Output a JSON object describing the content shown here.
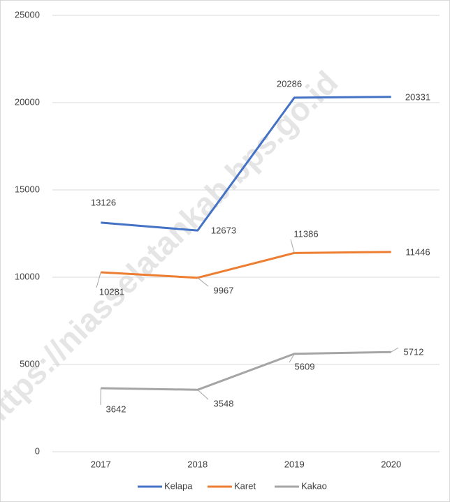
{
  "chart_data": {
    "type": "line",
    "categories": [
      "2017",
      "2018",
      "2019",
      "2020"
    ],
    "series": [
      {
        "name": "Kelapa",
        "color": "#4472c4",
        "values": [
          13126,
          12673,
          20286,
          20331
        ]
      },
      {
        "name": "Karet",
        "color": "#ed7d31",
        "values": [
          10281,
          9967,
          11386,
          11446
        ]
      },
      {
        "name": "Kakao",
        "color": "#a5a5a5",
        "values": [
          3642,
          3548,
          5609,
          5712
        ]
      }
    ],
    "ylim": [
      0,
      25000
    ],
    "yticks": [
      0,
      5000,
      10000,
      15000,
      20000,
      25000
    ],
    "grid": true,
    "legend": "bottom",
    "watermark": "https://niasselatankab.bps.go.id"
  }
}
